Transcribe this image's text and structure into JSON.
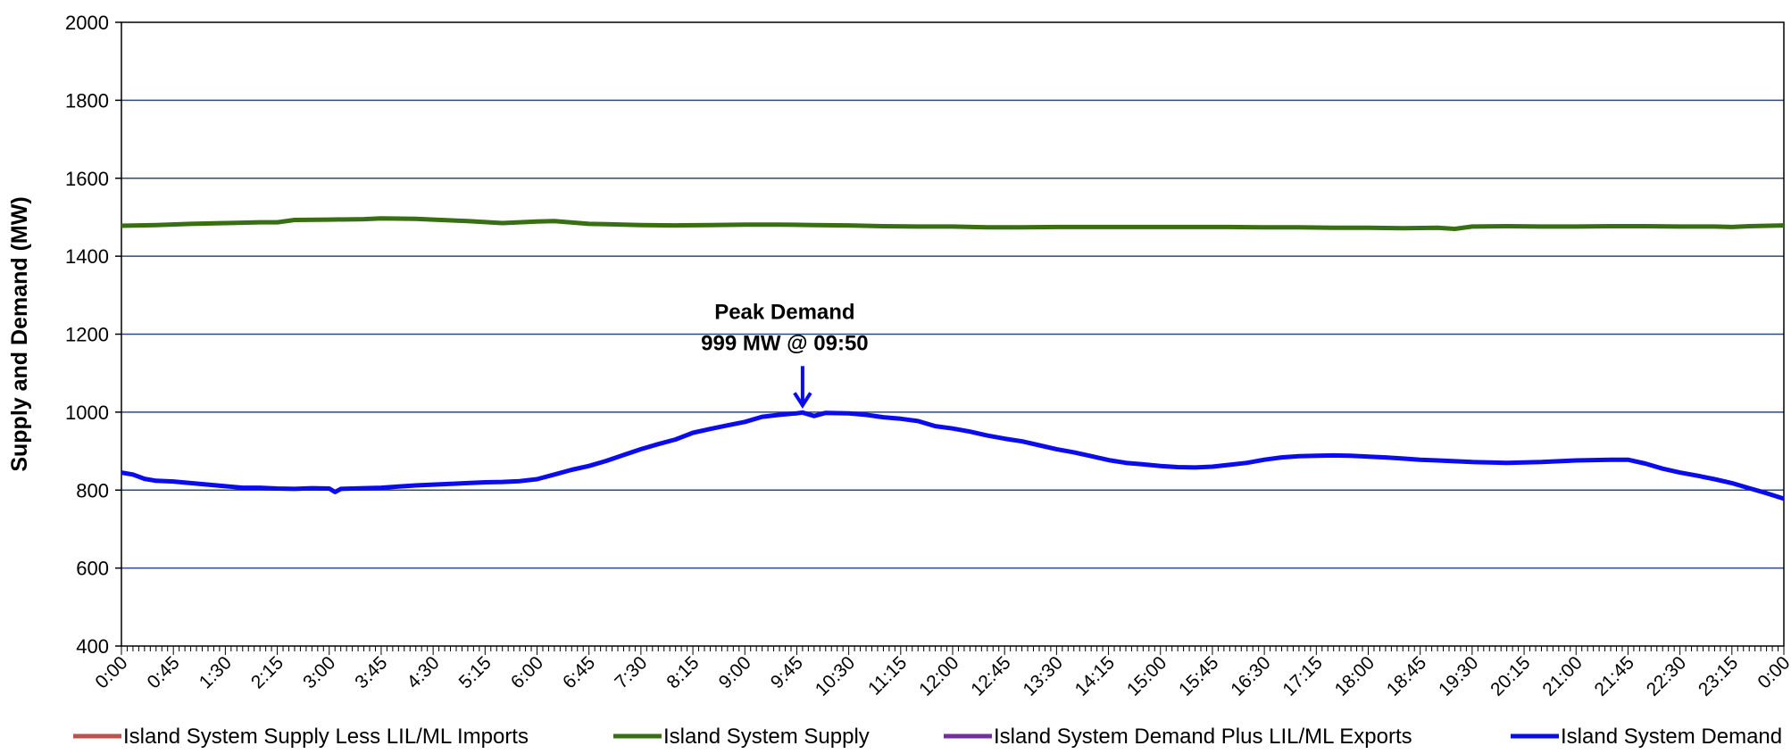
{
  "chart_data": {
    "type": "line",
    "ylabel": "Supply and Demand (MW)",
    "xlabel": "",
    "ylim": [
      400,
      2000
    ],
    "yticks": [
      400,
      600,
      800,
      1000,
      1200,
      1400,
      1600,
      1800,
      2000
    ],
    "xlim_minutes": [
      0,
      1440
    ],
    "xticks": [
      "0:00",
      "0:45",
      "1:30",
      "2:15",
      "3:00",
      "3:45",
      "4:30",
      "5:15",
      "6:00",
      "6:45",
      "7:30",
      "8:15",
      "9:00",
      "9:45",
      "10:30",
      "11:15",
      "12:00",
      "12:45",
      "13:30",
      "14:15",
      "15:00",
      "15:45",
      "16:30",
      "17:15",
      "18:00",
      "18:45",
      "19:30",
      "20:15",
      "21:00",
      "21:45",
      "22:30",
      "23:15",
      "0:00"
    ],
    "grid": "horizontal",
    "legend_position": "bottom",
    "annotation": {
      "line1": "Peak Demand",
      "line2": "999 MW @ 09:50",
      "time": "9:50",
      "value": 999
    },
    "series": [
      {
        "name": "Island System Supply Less LIL/ML Imports",
        "color": "#c0504d",
        "points": []
      },
      {
        "name": "Island System Supply",
        "color": "#376f12",
        "points": [
          [
            "0:00",
            1478
          ],
          [
            "0:30",
            1480
          ],
          [
            "1:00",
            1483
          ],
          [
            "1:30",
            1485
          ],
          [
            "2:00",
            1487
          ],
          [
            "2:15",
            1487
          ],
          [
            "2:30",
            1493
          ],
          [
            "3:00",
            1494
          ],
          [
            "3:30",
            1495
          ],
          [
            "3:45",
            1497
          ],
          [
            "4:15",
            1496
          ],
          [
            "4:30",
            1494
          ],
          [
            "5:00",
            1490
          ],
          [
            "5:30",
            1485
          ],
          [
            "6:00",
            1489
          ],
          [
            "6:15",
            1490
          ],
          [
            "6:45",
            1483
          ],
          [
            "7:00",
            1482
          ],
          [
            "7:30",
            1480
          ],
          [
            "8:00",
            1479
          ],
          [
            "8:30",
            1480
          ],
          [
            "9:00",
            1481
          ],
          [
            "9:30",
            1481
          ],
          [
            "10:00",
            1480
          ],
          [
            "10:30",
            1479
          ],
          [
            "11:00",
            1477
          ],
          [
            "11:30",
            1476
          ],
          [
            "12:00",
            1476
          ],
          [
            "12:30",
            1474
          ],
          [
            "13:00",
            1474
          ],
          [
            "13:30",
            1475
          ],
          [
            "14:00",
            1475
          ],
          [
            "14:30",
            1475
          ],
          [
            "15:00",
            1475
          ],
          [
            "15:30",
            1475
          ],
          [
            "16:00",
            1475
          ],
          [
            "16:30",
            1474
          ],
          [
            "17:00",
            1474
          ],
          [
            "17:30",
            1473
          ],
          [
            "18:00",
            1473
          ],
          [
            "18:30",
            1472
          ],
          [
            "19:00",
            1473
          ],
          [
            "19:15",
            1470
          ],
          [
            "19:30",
            1476
          ],
          [
            "20:00",
            1477
          ],
          [
            "20:30",
            1476
          ],
          [
            "21:00",
            1476
          ],
          [
            "21:30",
            1477
          ],
          [
            "22:00",
            1477
          ],
          [
            "22:30",
            1476
          ],
          [
            "23:00",
            1476
          ],
          [
            "23:15",
            1475
          ],
          [
            "23:30",
            1477
          ],
          [
            "0:00",
            1479
          ]
        ]
      },
      {
        "name": "Island System Demand Plus LIL/ML Exports",
        "color": "#7030a0",
        "points": []
      },
      {
        "name": "Island System Demand",
        "color": "#0b0bf0",
        "points": [
          [
            "0:00",
            845
          ],
          [
            "0:10",
            840
          ],
          [
            "0:20",
            829
          ],
          [
            "0:30",
            824
          ],
          [
            "0:45",
            822
          ],
          [
            "1:00",
            818
          ],
          [
            "1:15",
            814
          ],
          [
            "1:30",
            810
          ],
          [
            "1:45",
            806
          ],
          [
            "2:00",
            806
          ],
          [
            "2:15",
            804
          ],
          [
            "2:30",
            803
          ],
          [
            "2:45",
            805
          ],
          [
            "3:00",
            804
          ],
          [
            "3:05",
            795
          ],
          [
            "3:10",
            803
          ],
          [
            "3:30",
            805
          ],
          [
            "3:45",
            806
          ],
          [
            "4:00",
            809
          ],
          [
            "4:15",
            812
          ],
          [
            "4:30",
            814
          ],
          [
            "4:45",
            816
          ],
          [
            "5:00",
            818
          ],
          [
            "5:15",
            820
          ],
          [
            "5:30",
            821
          ],
          [
            "5:45",
            823
          ],
          [
            "6:00",
            828
          ],
          [
            "6:15",
            840
          ],
          [
            "6:30",
            852
          ],
          [
            "6:45",
            862
          ],
          [
            "7:00",
            875
          ],
          [
            "7:15",
            890
          ],
          [
            "7:30",
            905
          ],
          [
            "7:45",
            918
          ],
          [
            "8:00",
            930
          ],
          [
            "8:15",
            947
          ],
          [
            "8:30",
            957
          ],
          [
            "8:45",
            966
          ],
          [
            "9:00",
            975
          ],
          [
            "9:15",
            988
          ],
          [
            "9:30",
            993
          ],
          [
            "9:45",
            997
          ],
          [
            "9:50",
            999
          ],
          [
            "10:00",
            990
          ],
          [
            "10:10",
            998
          ],
          [
            "10:30",
            997
          ],
          [
            "10:45",
            993
          ],
          [
            "11:00",
            987
          ],
          [
            "11:15",
            983
          ],
          [
            "11:30",
            977
          ],
          [
            "11:45",
            964
          ],
          [
            "12:00",
            958
          ],
          [
            "12:15",
            950
          ],
          [
            "12:30",
            940
          ],
          [
            "12:45",
            932
          ],
          [
            "13:00",
            925
          ],
          [
            "13:15",
            915
          ],
          [
            "13:30",
            905
          ],
          [
            "13:45",
            897
          ],
          [
            "14:00",
            887
          ],
          [
            "14:15",
            877
          ],
          [
            "14:30",
            870
          ],
          [
            "14:45",
            866
          ],
          [
            "15:00",
            862
          ],
          [
            "15:15",
            859
          ],
          [
            "15:30",
            858
          ],
          [
            "15:45",
            860
          ],
          [
            "16:00",
            865
          ],
          [
            "16:15",
            870
          ],
          [
            "16:30",
            878
          ],
          [
            "16:45",
            884
          ],
          [
            "17:00",
            887
          ],
          [
            "17:15",
            888
          ],
          [
            "17:30",
            889
          ],
          [
            "17:45",
            888
          ],
          [
            "18:00",
            886
          ],
          [
            "18:15",
            884
          ],
          [
            "18:30",
            881
          ],
          [
            "18:45",
            878
          ],
          [
            "19:00",
            876
          ],
          [
            "19:15",
            874
          ],
          [
            "19:30",
            872
          ],
          [
            "19:45",
            871
          ],
          [
            "20:00",
            870
          ],
          [
            "20:15",
            871
          ],
          [
            "20:30",
            872
          ],
          [
            "20:45",
            874
          ],
          [
            "21:00",
            876
          ],
          [
            "21:15",
            877
          ],
          [
            "21:30",
            878
          ],
          [
            "21:45",
            878
          ],
          [
            "22:00",
            868
          ],
          [
            "22:15",
            855
          ],
          [
            "22:30",
            845
          ],
          [
            "22:45",
            837
          ],
          [
            "23:00",
            828
          ],
          [
            "23:15",
            818
          ],
          [
            "23:30",
            805
          ],
          [
            "23:45",
            792
          ],
          [
            "0:00",
            778
          ]
        ]
      }
    ]
  }
}
